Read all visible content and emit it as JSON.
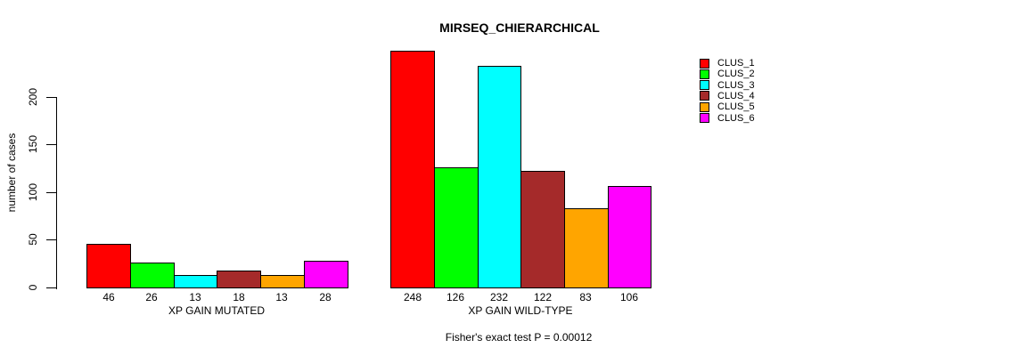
{
  "chart_data": {
    "type": "bar",
    "title": "MIRSEQ_CHIERARCHICAL",
    "ylabel": "number of cases",
    "xlabel": "",
    "ylim": [
      0,
      260
    ],
    "yticks": [
      0,
      50,
      100,
      150,
      200
    ],
    "grid": false,
    "legend_position": "right",
    "series_labels": [
      "CLUS_1",
      "CLUS_2",
      "CLUS_3",
      "CLUS_4",
      "CLUS_5",
      "CLUS_6"
    ],
    "colors": [
      "#FF0000",
      "#00FF00",
      "#00FFFF",
      "#A52A2A",
      "#FFA500",
      "#FF00FF"
    ],
    "groups": [
      {
        "label": "XP GAIN MUTATED",
        "values": [
          46,
          26,
          13,
          18,
          13,
          28
        ]
      },
      {
        "label": "XP GAIN WILD-TYPE",
        "values": [
          248,
          126,
          232,
          122,
          83,
          106
        ]
      }
    ],
    "annotation": "Fisher's exact test P = 0.00012"
  }
}
